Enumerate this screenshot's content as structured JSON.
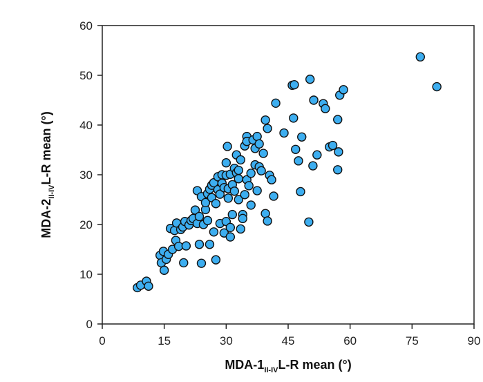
{
  "chart_data": {
    "type": "scatter",
    "x_axis": {
      "label_prefix": "MDA-1",
      "label_subscript": "II-IV",
      "label_suffix": "L-R mean (°)",
      "range": [
        0,
        90
      ],
      "ticks": [
        "0",
        "15",
        "30",
        "45",
        "60",
        "75",
        "90"
      ]
    },
    "y_axis": {
      "label_prefix": "MDA-2",
      "label_subscript": "II-IV",
      "label_suffix": "L-R mean (°)",
      "range": [
        0,
        60
      ],
      "ticks": [
        "0",
        "10",
        "20",
        "30",
        "40",
        "50",
        "60"
      ]
    },
    "grid": false,
    "marker_color": "#3DAEF0",
    "marker_edge_color": "#111111",
    "points": [
      [
        8.5,
        7.3
      ],
      [
        9.3,
        7.8
      ],
      [
        10.7,
        8.6
      ],
      [
        11.2,
        7.6
      ],
      [
        14.0,
        13.8
      ],
      [
        14.3,
        12.3
      ],
      [
        14.8,
        14.6
      ],
      [
        15.0,
        10.8
      ],
      [
        15.5,
        13.0
      ],
      [
        16.0,
        14.0
      ],
      [
        16.5,
        19.2
      ],
      [
        17.0,
        15.0
      ],
      [
        17.5,
        18.8
      ],
      [
        17.8,
        16.8
      ],
      [
        18.0,
        20.3
      ],
      [
        18.5,
        15.6
      ],
      [
        19.0,
        19.0
      ],
      [
        19.5,
        19.5
      ],
      [
        19.7,
        12.3
      ],
      [
        20.0,
        20.6
      ],
      [
        20.3,
        15.7
      ],
      [
        21.0,
        19.9
      ],
      [
        21.5,
        20.8
      ],
      [
        22.0,
        21.2
      ],
      [
        22.5,
        22.9
      ],
      [
        23.0,
        20.2
      ],
      [
        23.0,
        26.8
      ],
      [
        23.5,
        21.6
      ],
      [
        23.5,
        16.0
      ],
      [
        24.0,
        25.6
      ],
      [
        24.0,
        12.2
      ],
      [
        24.5,
        20.0
      ],
      [
        25.0,
        23.0
      ],
      [
        25.0,
        24.4
      ],
      [
        25.5,
        26.2
      ],
      [
        25.5,
        20.8
      ],
      [
        26.0,
        27.1
      ],
      [
        26.0,
        16.0
      ],
      [
        26.5,
        27.9
      ],
      [
        26.5,
        25.4
      ],
      [
        27.0,
        18.5
      ],
      [
        27.0,
        28.4
      ],
      [
        27.5,
        24.2
      ],
      [
        27.5,
        12.9
      ],
      [
        28.0,
        29.6
      ],
      [
        28.0,
        27.0
      ],
      [
        28.5,
        26.1
      ],
      [
        28.5,
        20.2
      ],
      [
        29.0,
        30.0
      ],
      [
        29.0,
        28.3
      ],
      [
        29.5,
        27.4
      ],
      [
        29.5,
        18.3
      ],
      [
        30.0,
        32.4
      ],
      [
        30.0,
        29.9
      ],
      [
        30.0,
        20.6
      ],
      [
        30.3,
        35.7
      ],
      [
        30.5,
        27.2
      ],
      [
        30.5,
        25.3
      ],
      [
        31.0,
        30.1
      ],
      [
        31.0,
        19.4
      ],
      [
        31.0,
        17.5
      ],
      [
        31.5,
        28.0
      ],
      [
        31.5,
        22.0
      ],
      [
        32.0,
        31.3
      ],
      [
        32.0,
        26.7
      ],
      [
        32.5,
        30.4
      ],
      [
        32.5,
        34.0
      ],
      [
        33.0,
        30.9
      ],
      [
        33.0,
        29.2
      ],
      [
        33.0,
        25.0
      ],
      [
        33.5,
        33.0
      ],
      [
        33.5,
        19.1
      ],
      [
        34.0,
        22.0
      ],
      [
        34.0,
        21.2
      ],
      [
        34.5,
        35.8
      ],
      [
        34.5,
        26.0
      ],
      [
        35.0,
        37.7
      ],
      [
        35.0,
        29.0
      ],
      [
        35.0,
        36.7
      ],
      [
        35.5,
        27.8
      ],
      [
        36.0,
        30.3
      ],
      [
        36.0,
        23.9
      ],
      [
        36.5,
        37.0
      ],
      [
        37.0,
        35.3
      ],
      [
        37.0,
        32.0
      ],
      [
        37.5,
        37.7
      ],
      [
        37.5,
        26.8
      ],
      [
        38.0,
        36.2
      ],
      [
        38.0,
        31.6
      ],
      [
        38.5,
        30.8
      ],
      [
        39.0,
        34.3
      ],
      [
        39.5,
        41.0
      ],
      [
        39.5,
        22.2
      ],
      [
        40.0,
        39.3
      ],
      [
        40.0,
        20.7
      ],
      [
        40.5,
        29.9
      ],
      [
        41.0,
        29.0
      ],
      [
        41.5,
        25.7
      ],
      [
        42.0,
        44.4
      ],
      [
        44.0,
        38.4
      ],
      [
        46.0,
        48.0
      ],
      [
        46.5,
        48.1
      ],
      [
        46.3,
        41.4
      ],
      [
        46.8,
        35.1
      ],
      [
        47.5,
        32.8
      ],
      [
        48.0,
        26.6
      ],
      [
        48.3,
        37.6
      ],
      [
        50.0,
        20.5
      ],
      [
        50.3,
        49.2
      ],
      [
        51.0,
        31.8
      ],
      [
        51.2,
        45.0
      ],
      [
        52.0,
        34.0
      ],
      [
        53.5,
        44.3
      ],
      [
        54.0,
        43.3
      ],
      [
        55.0,
        35.6
      ],
      [
        55.8,
        35.9
      ],
      [
        57.0,
        41.1
      ],
      [
        57.0,
        31.0
      ],
      [
        57.2,
        34.6
      ],
      [
        57.5,
        46.0
      ],
      [
        58.4,
        47.1
      ],
      [
        77.0,
        53.7
      ],
      [
        81.0,
        47.7
      ]
    ]
  }
}
